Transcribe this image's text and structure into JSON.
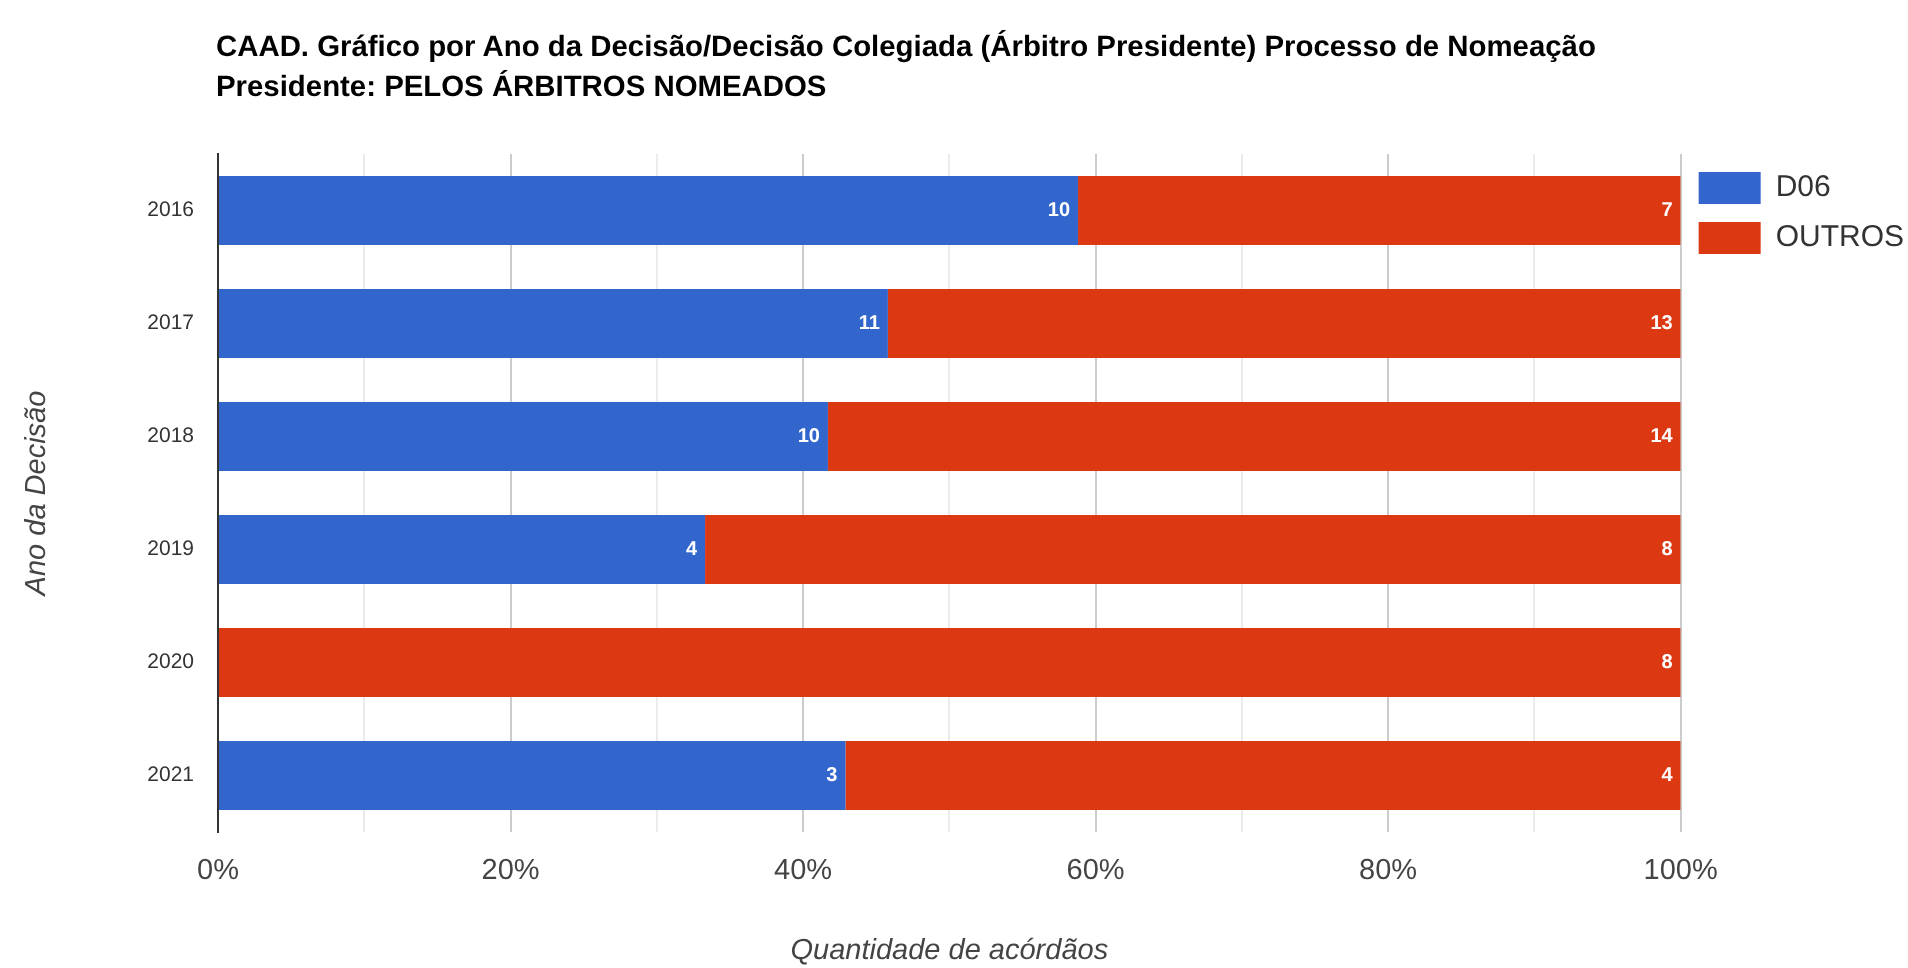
{
  "chart_data": {
    "type": "bar",
    "orientation": "horizontal",
    "stacked": true,
    "title": "CAAD. Gráfico por Ano da Decisão/Decisão Colegiada (Árbitro Presidente) Processo de Nomeação Presidente: PELOS ÁRBITROS NOMEADOS",
    "xlabel": "Quantidade de acórdãos",
    "ylabel": "Ano da Decisão",
    "categories": [
      "2016",
      "2017",
      "2018",
      "2019",
      "2020",
      "2021"
    ],
    "series": [
      {
        "name": "D06",
        "color": "#3366cc",
        "values": [
          58.8,
          45.8,
          41.7,
          33.3,
          0,
          42.9
        ]
      },
      {
        "name": "OUTROS",
        "color": "#dc3912",
        "values": [
          41.2,
          54.2,
          58.3,
          66.7,
          100,
          57.1
        ]
      }
    ],
    "xlim": [
      0,
      100
    ],
    "xticks": [
      {
        "value": 0,
        "label": "0%"
      },
      {
        "value": 10,
        "label": null
      },
      {
        "value": 20,
        "label": "20%"
      },
      {
        "value": 30,
        "label": null
      },
      {
        "value": 40,
        "label": "40%"
      },
      {
        "value": 50,
        "label": null
      },
      {
        "value": 60,
        "label": "60%"
      },
      {
        "value": 70,
        "label": null
      },
      {
        "value": 80,
        "label": "80%"
      },
      {
        "value": 90,
        "label": null
      },
      {
        "value": 100,
        "label": "100%"
      }
    ],
    "annotations": [
      {
        "text": "10",
        "x": 58.8,
        "y": "2016"
      },
      {
        "text": "11",
        "x": 45.8,
        "y": "2017"
      },
      {
        "text": "10",
        "x": 41.7,
        "y": "2018"
      },
      {
        "text": "4",
        "x": 33.3,
        "y": "2019"
      },
      {
        "text": "3",
        "x": 42.9,
        "y": "2021"
      },
      {
        "text": "7",
        "x": 100,
        "y": "2016"
      },
      {
        "text": "13",
        "x": 100,
        "y": "2017"
      },
      {
        "text": "14",
        "x": 100,
        "y": "2018"
      },
      {
        "text": "8",
        "x": 100,
        "y": "2019"
      },
      {
        "text": "8",
        "x": 100,
        "y": "2020"
      },
      {
        "text": "4",
        "x": 100,
        "y": "2021"
      }
    ],
    "grid": "x",
    "legend": "top right"
  }
}
